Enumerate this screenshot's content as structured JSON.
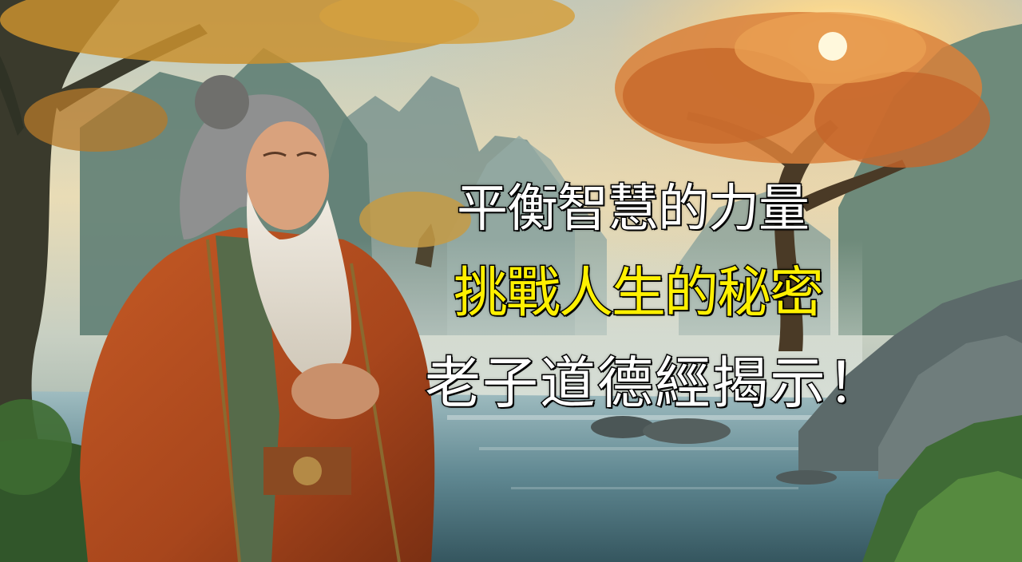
{
  "title": {
    "line1": "平衡智慧的力量",
    "line2": "挑戰人生的秘密",
    "line3": "老子道德經揭示！"
  },
  "colors": {
    "line1": "#ffffff",
    "line2": "#fff000",
    "line3": "#ffffff",
    "outline": "#000000"
  }
}
